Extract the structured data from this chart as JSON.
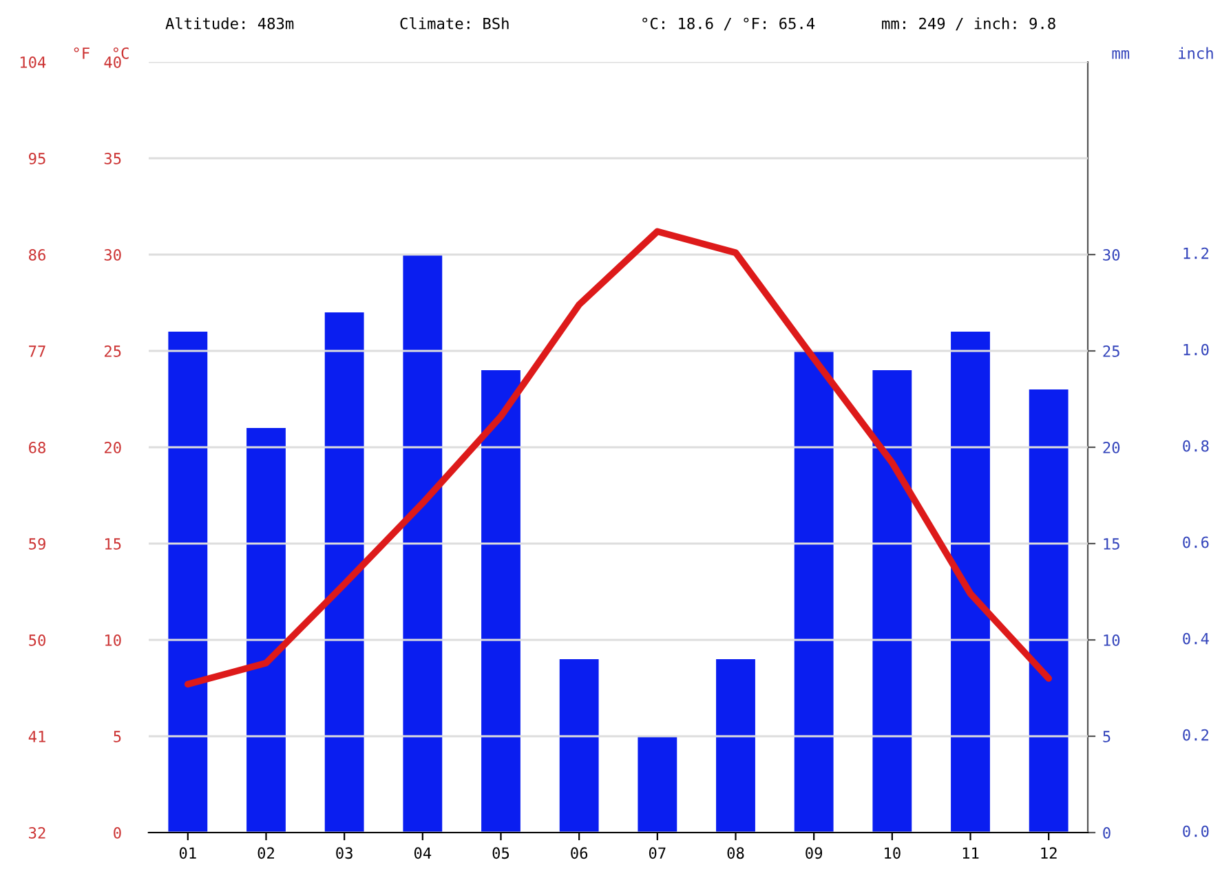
{
  "chart_data": {
    "type": "bar",
    "categories": [
      "01",
      "02",
      "03",
      "04",
      "05",
      "06",
      "07",
      "08",
      "09",
      "10",
      "11",
      "12"
    ],
    "series": [
      {
        "axis": "y2",
        "color": "#0a1ef0",
        "values": [
          26,
          21,
          27,
          30,
          24,
          9,
          5,
          9,
          25,
          24,
          26,
          23
        ]
      },
      {
        "type": "line",
        "color": "#dd1a1a",
        "line_style": "solid",
        "values": [
          7.7,
          8.8,
          12.9,
          17.1,
          21.6,
          27.4,
          31.2,
          30.1,
          24.6,
          19.2,
          12.4,
          8.0
        ]
      }
    ],
    "ylabel": "°C",
    "ylim": [
      0,
      40
    ],
    "yticks": [
      0,
      5,
      10,
      15,
      20,
      25,
      30,
      35,
      40
    ],
    "y3label": "°F",
    "y3lim": [
      32,
      104
    ],
    "y3ticks": [
      32,
      41,
      50,
      59,
      68,
      77,
      86,
      95,
      104
    ],
    "y2label": "mm",
    "y2lim": [
      0,
      40
    ],
    "y2ticks": [
      0,
      5,
      10,
      15,
      20,
      25,
      30
    ],
    "grid": "y",
    "legend": false,
    "annotations": [
      "Altitude: 483m",
      "Climate: BSh",
      "°C: 18.6 / °F: 65.4",
      "mm: 249 / inch: 9.8",
      "inch",
      "0.0",
      "0.2",
      "0.4",
      "0.6",
      "0.8",
      "1.0",
      "1.2"
    ]
  }
}
